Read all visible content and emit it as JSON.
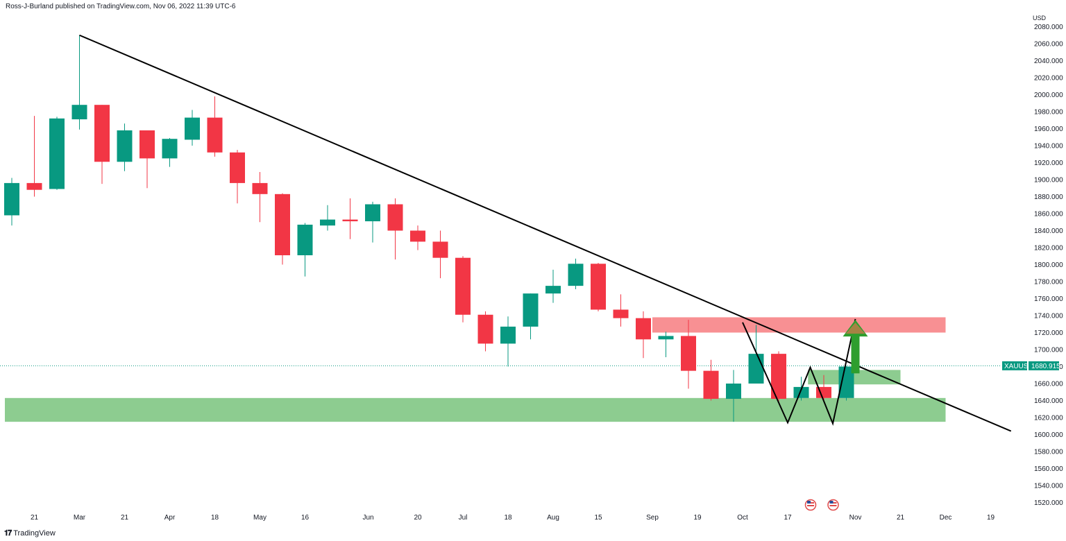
{
  "header": {
    "published_text": "Ross-J-Burland published on TradingView.com, Nov 06, 2022 11:39 UTC-6"
  },
  "footer": {
    "logo_icon": "tradingview-logo-icon",
    "brand": "TradingView"
  },
  "colors": {
    "up": "#089981",
    "down": "#f23645",
    "trendline": "#000000",
    "zone_red": "#f77c80",
    "zone_green": "#81c784",
    "arrow": "#2e9e2e"
  },
  "chart_data": {
    "type": "candlestick",
    "symbol": "XAUUSD",
    "last_price": "1680.915",
    "currency": "USD",
    "ylim": [
      1510,
      2090
    ],
    "y_ticks": [
      "2080.000",
      "2060.000",
      "2040.000",
      "2020.000",
      "2000.000",
      "1980.000",
      "1960.000",
      "1940.000",
      "1920.000",
      "1900.000",
      "1880.000",
      "1860.000",
      "1840.000",
      "1820.000",
      "1800.000",
      "1780.000",
      "1760.000",
      "1740.000",
      "1720.000",
      "1700.000",
      "1680.000",
      "1660.000",
      "1640.000",
      "1620.000",
      "1600.000",
      "1580.000",
      "1560.000",
      "1540.000",
      "1520.000"
    ],
    "x_ticks": [
      {
        "label": "21",
        "week": 1
      },
      {
        "label": "Mar",
        "week": 3
      },
      {
        "label": "21",
        "week": 5
      },
      {
        "label": "Apr",
        "week": 7
      },
      {
        "label": "18",
        "week": 9
      },
      {
        "label": "May",
        "week": 11
      },
      {
        "label": "16",
        "week": 13
      },
      {
        "label": "Jun",
        "week": 15.8
      },
      {
        "label": "20",
        "week": 18
      },
      {
        "label": "Jul",
        "week": 20
      },
      {
        "label": "18",
        "week": 22
      },
      {
        "label": "Aug",
        "week": 24
      },
      {
        "label": "15",
        "week": 26
      },
      {
        "label": "Sep",
        "week": 28.4
      },
      {
        "label": "19",
        "week": 30.4
      },
      {
        "label": "Oct",
        "week": 32.4
      },
      {
        "label": "17",
        "week": 34.4
      },
      {
        "label": "Nov",
        "week": 37.4
      },
      {
        "label": "21",
        "week": 39.4
      },
      {
        "label": "Dec",
        "week": 41.4
      },
      {
        "label": "19",
        "week": 43.4
      }
    ],
    "candles": [
      {
        "o": 1858,
        "h": 1902,
        "l": 1846,
        "c": 1896
      },
      {
        "o": 1896,
        "h": 1975,
        "l": 1880,
        "c": 1888
      },
      {
        "o": 1889,
        "h": 1974,
        "l": 1888,
        "c": 1972
      },
      {
        "o": 1971,
        "h": 2070,
        "l": 1959,
        "c": 1988
      },
      {
        "o": 1988,
        "h": 1988,
        "l": 1895,
        "c": 1921
      },
      {
        "o": 1921,
        "h": 1966,
        "l": 1910,
        "c": 1958
      },
      {
        "o": 1958,
        "h": 1958,
        "l": 1890,
        "c": 1925
      },
      {
        "o": 1925,
        "h": 1949,
        "l": 1915,
        "c": 1948
      },
      {
        "o": 1947,
        "h": 1982,
        "l": 1940,
        "c": 1973
      },
      {
        "o": 1973,
        "h": 1998,
        "l": 1927,
        "c": 1932
      },
      {
        "o": 1932,
        "h": 1935,
        "l": 1872,
        "c": 1896
      },
      {
        "o": 1896,
        "h": 1909,
        "l": 1850,
        "c": 1883
      },
      {
        "o": 1883,
        "h": 1884,
        "l": 1800,
        "c": 1811
      },
      {
        "o": 1811,
        "h": 1849,
        "l": 1786,
        "c": 1847
      },
      {
        "o": 1846,
        "h": 1870,
        "l": 1840,
        "c": 1853
      },
      {
        "o": 1853,
        "h": 1878,
        "l": 1830,
        "c": 1851
      },
      {
        "o": 1851,
        "h": 1874,
        "l": 1826,
        "c": 1871
      },
      {
        "o": 1871,
        "h": 1878,
        "l": 1806,
        "c": 1840
      },
      {
        "o": 1840,
        "h": 1846,
        "l": 1817,
        "c": 1827
      },
      {
        "o": 1827,
        "h": 1840,
        "l": 1784,
        "c": 1808
      },
      {
        "o": 1808,
        "h": 1810,
        "l": 1732,
        "c": 1741
      },
      {
        "o": 1741,
        "h": 1745,
        "l": 1698,
        "c": 1707
      },
      {
        "o": 1707,
        "h": 1739,
        "l": 1680,
        "c": 1727
      },
      {
        "o": 1727,
        "h": 1766,
        "l": 1712,
        "c": 1766
      },
      {
        "o": 1766,
        "h": 1794,
        "l": 1755,
        "c": 1775
      },
      {
        "o": 1775,
        "h": 1807,
        "l": 1771,
        "c": 1801
      },
      {
        "o": 1801,
        "h": 1802,
        "l": 1745,
        "c": 1747
      },
      {
        "o": 1747,
        "h": 1765,
        "l": 1727,
        "c": 1737
      },
      {
        "o": 1737,
        "h": 1745,
        "l": 1690,
        "c": 1712
      },
      {
        "o": 1712,
        "h": 1721,
        "l": 1691,
        "c": 1716
      },
      {
        "o": 1716,
        "h": 1735,
        "l": 1654,
        "c": 1675
      },
      {
        "o": 1675,
        "h": 1688,
        "l": 1640,
        "c": 1642
      },
      {
        "o": 1642,
        "h": 1676,
        "l": 1615,
        "c": 1660
      },
      {
        "o": 1660,
        "h": 1729,
        "l": 1660,
        "c": 1695
      },
      {
        "o": 1695,
        "h": 1698,
        "l": 1639,
        "c": 1642
      },
      {
        "o": 1643,
        "h": 1668,
        "l": 1640,
        "c": 1656
      },
      {
        "o": 1656,
        "h": 1670,
        "l": 1638,
        "c": 1643
      },
      {
        "o": 1643,
        "h": 1681,
        "l": 1640,
        "c": 1680
      }
    ],
    "zones": [
      {
        "kind": "red",
        "from_week": 28.4,
        "to_week": 41.4,
        "y1": 1738,
        "y2": 1720
      },
      {
        "kind": "green",
        "from_week": 0,
        "to_week": 41.4,
        "y1": 1643,
        "y2": 1615
      },
      {
        "kind": "green",
        "from_week": 35.3,
        "to_week": 39.4,
        "y1": 1676,
        "y2": 1659
      }
    ],
    "trendline": {
      "from": [
        3,
        2070
      ],
      "to": [
        44.3,
        1604
      ]
    },
    "w_pattern": [
      [
        32.4,
        1732
      ],
      [
        34.4,
        1614
      ],
      [
        35.4,
        1679
      ],
      [
        36.4,
        1613
      ],
      [
        37.4,
        1736
      ]
    ],
    "arrow": {
      "week": 37.4,
      "from": 1672,
      "to": 1735
    },
    "event_icons": [
      "us-flag-icon",
      "us-flag-icon"
    ],
    "event_weeks": [
      36.4,
      37.4
    ]
  }
}
